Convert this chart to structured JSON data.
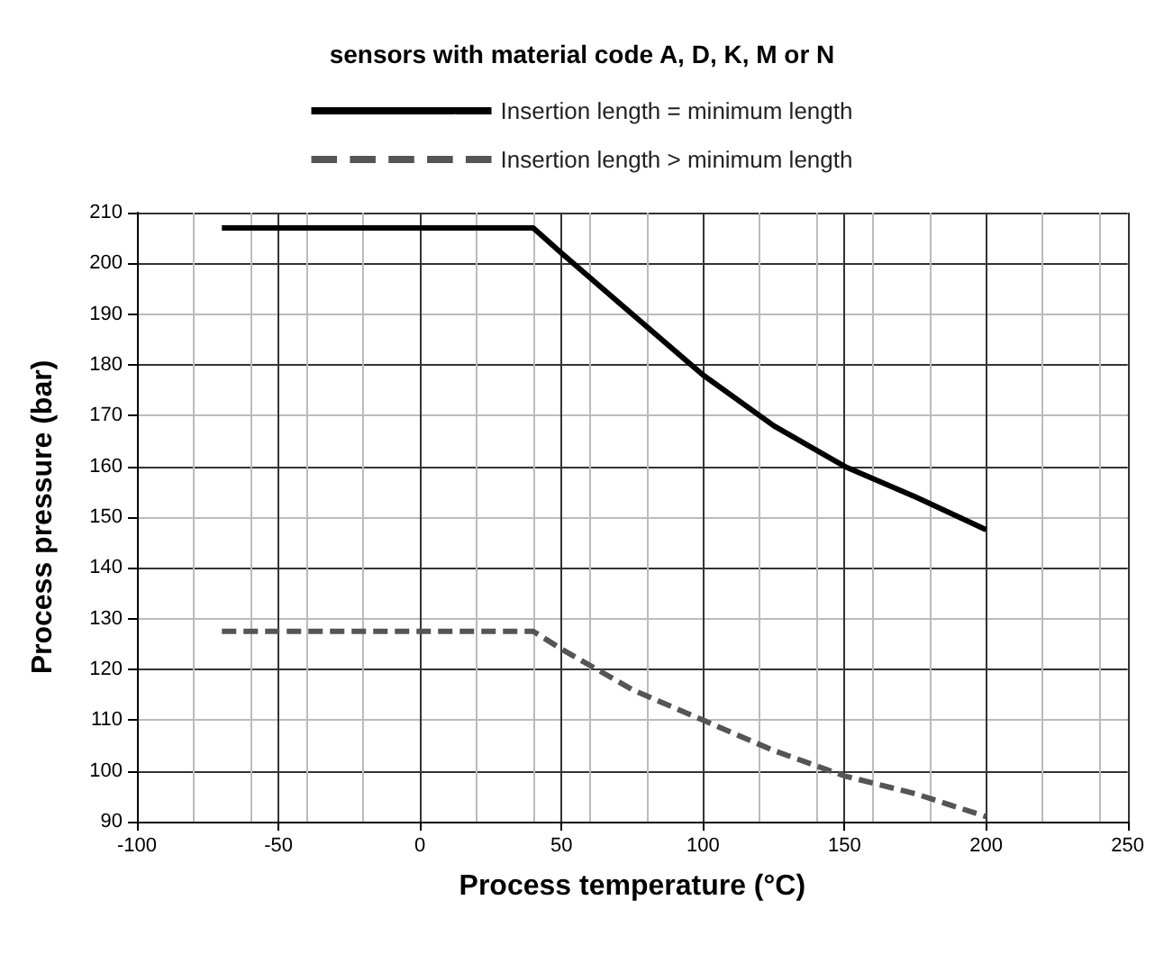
{
  "chart_data": {
    "type": "line",
    "title": "sensors with material code A, D, K, M or N",
    "xlabel": "Process temperature (°C)",
    "ylabel": "Process pressure (bar)",
    "xlim": [
      -100,
      250
    ],
    "xticks": [
      -100,
      -50,
      0,
      50,
      100,
      150,
      200,
      250
    ],
    "ylim": [
      90,
      210
    ],
    "yticks": [
      90,
      100,
      110,
      120,
      130,
      140,
      150,
      160,
      170,
      180,
      190,
      200,
      210
    ],
    "grid": true,
    "legend": "top",
    "marker": "none",
    "series": [
      {
        "name": "Insertion length = minimum length",
        "color": "#000000",
        "line_style": "solid",
        "x": [
          -70,
          40,
          50,
          75,
          100,
          125,
          150,
          175,
          200
        ],
        "values": [
          207,
          207,
          202,
          190,
          178,
          168,
          160,
          154,
          147.5
        ]
      },
      {
        "name": "Insertion length > minimum length",
        "color": "#555555",
        "line_style": "dashed",
        "x": [
          -70,
          40,
          50,
          75,
          100,
          125,
          150,
          175,
          200
        ],
        "values": [
          127.5,
          127.5,
          124,
          116,
          110,
          104,
          99,
          95.5,
          91
        ]
      }
    ]
  }
}
